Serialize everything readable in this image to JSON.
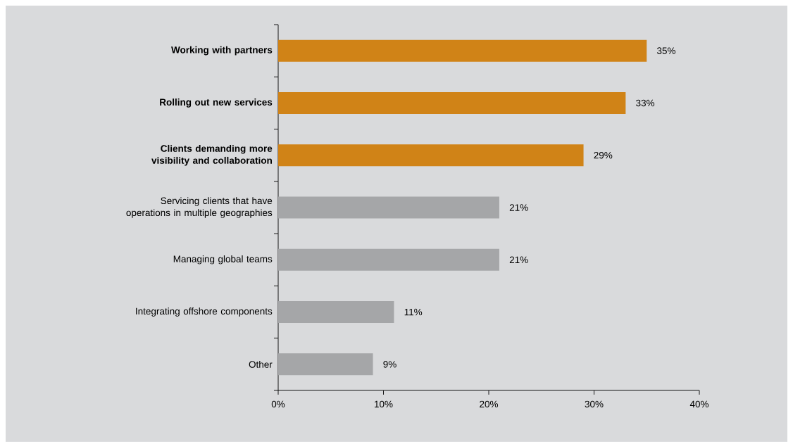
{
  "chart_data": {
    "type": "bar",
    "orientation": "horizontal",
    "categories": [
      "**Working with partners**",
      "**Rolling out new services**",
      "**Clients demanding more visibility and collaboration**",
      "Servicing clients that have operations in multiple geographies",
      "Managing global teams",
      "Integrating offshore components",
      "Other"
    ],
    "values": [
      35,
      33,
      29,
      21,
      21,
      11,
      9
    ],
    "colors": [
      "#d08317",
      "#d08317",
      "#d08317",
      "#a5a6a8",
      "#a5a6a8",
      "#a5a6a8",
      "#a5a6a8"
    ],
    "value_labels": [
      "35%",
      "33%",
      "29%",
      "21%",
      "21%",
      "11%",
      "9%"
    ],
    "xlim": [
      0,
      40
    ],
    "xticks": [
      {
        "value": 0,
        "label": "0%"
      },
      {
        "value": 10,
        "label": "10%"
      },
      {
        "value": 20,
        "label": "20%"
      },
      {
        "value": 30,
        "label": "30%"
      },
      {
        "value": 40,
        "label": "40%"
      }
    ],
    "grid": false
  }
}
